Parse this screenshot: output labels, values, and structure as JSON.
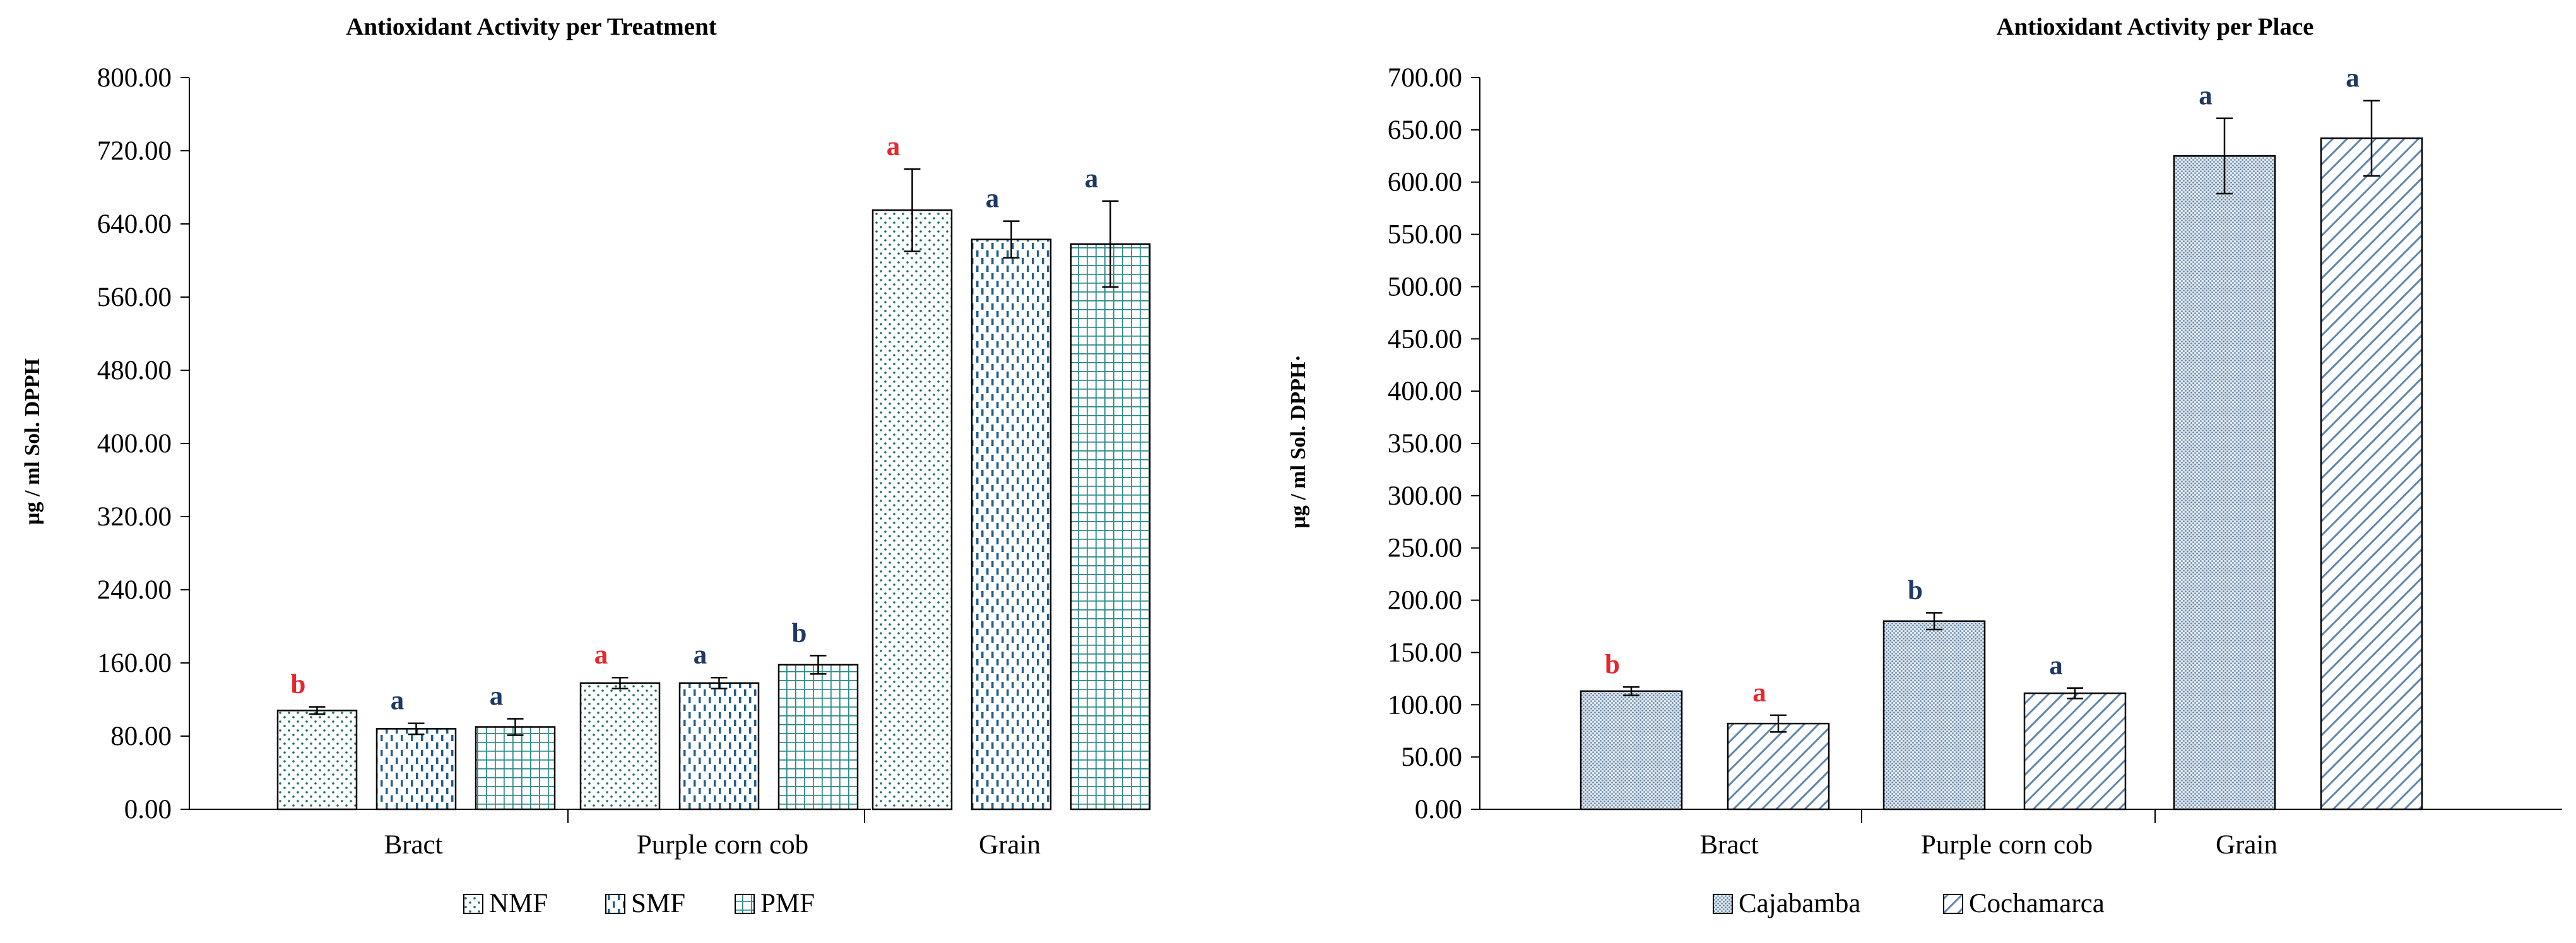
{
  "chart_data": [
    {
      "type": "bar",
      "title": "Antioxidant  Activity per Treatment",
      "ylabel": "µg / ml Sol. DPPH",
      "xlabel": "",
      "ylim": [
        0,
        800
      ],
      "ytick_step": 80,
      "yticks": [
        "0.00",
        "80.00",
        "160.00",
        "240.00",
        "320.00",
        "400.00",
        "480.00",
        "560.00",
        "640.00",
        "720.00",
        "800.00"
      ],
      "categories": [
        "Bract",
        "Purple  corn cob",
        "Grain"
      ],
      "series": [
        {
          "name": "NMF",
          "pattern": "dots",
          "values": [
            108,
            138,
            655
          ],
          "errors": [
            4,
            6,
            45
          ],
          "letters": [
            "b",
            "a",
            "a"
          ]
        },
        {
          "name": "SMF",
          "pattern": "dashes",
          "values": [
            88,
            138,
            623
          ],
          "errors": [
            6,
            6,
            20
          ],
          "letters": [
            "a",
            "a",
            "a"
          ]
        },
        {
          "name": "PMF",
          "pattern": "grid",
          "values": [
            90,
            158,
            618
          ],
          "errors": [
            9,
            10,
            47
          ],
          "letters": [
            "a",
            "b",
            "a"
          ]
        }
      ],
      "letter_colors": [
        [
          "#e8262c",
          "#e8262c",
          "#e8262c"
        ],
        [
          "#1f3864",
          "#1f3864",
          "#1f3864"
        ],
        [
          "#1f3864",
          "#1f3864",
          "#1f3864"
        ]
      ],
      "legend": {
        "position": "bottom",
        "entries": [
          "NMF",
          "SMF",
          "PMF"
        ]
      }
    },
    {
      "type": "bar",
      "title": "Antioxidant  Activity per Place",
      "ylabel": "µg / ml Sol. DPPH·",
      "xlabel": "",
      "ylim": [
        0,
        700
      ],
      "ytick_step": 50,
      "yticks": [
        "0.00",
        "50.00",
        "100.00",
        "150.00",
        "200.00",
        "250.00",
        "300.00",
        "350.00",
        "400.00",
        "450.00",
        "500.00",
        "550.00",
        "600.00",
        "650.00",
        "700.00"
      ],
      "categories": [
        "Bract",
        "Purple  corn cob",
        "Grain"
      ],
      "series": [
        {
          "name": "Cajabamba",
          "pattern": "fine",
          "values": [
            113,
            180,
            625
          ],
          "errors": [
            4,
            8,
            36
          ],
          "letters": [
            "b",
            "b",
            "a"
          ]
        },
        {
          "name": "Cochamarca",
          "pattern": "diag",
          "values": [
            82,
            111,
            642
          ],
          "errors": [
            8,
            5,
            36
          ],
          "letters": [
            "a",
            "a",
            "a"
          ]
        }
      ],
      "letter_colors": [
        [
          "#e8262c",
          "#1f3864",
          "#1f3864"
        ],
        [
          "#e8262c",
          "#1f3864",
          "#1f3864"
        ]
      ],
      "legend": {
        "position": "bottom",
        "entries": [
          "Cajabamba",
          "Cochamarca"
        ]
      }
    }
  ]
}
